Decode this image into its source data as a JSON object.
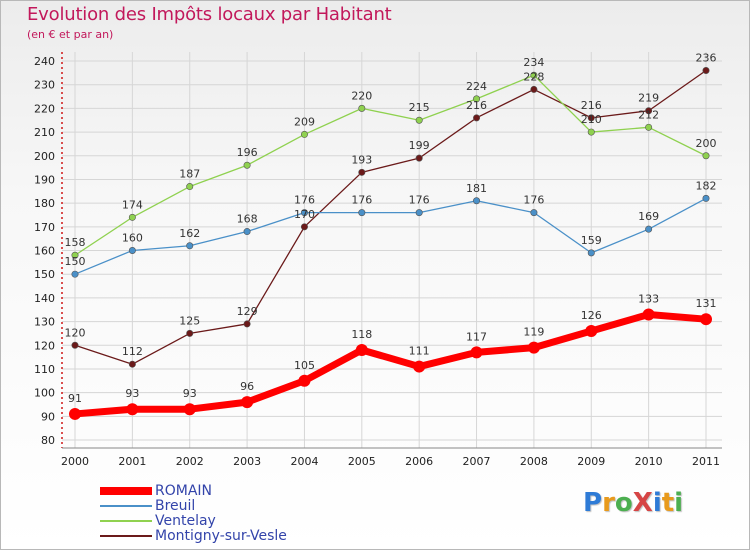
{
  "header": {
    "title": "Evolution des Impôts locaux par Habitant",
    "subtitle": "(en € et par an)"
  },
  "logo": {
    "text": "ProXiti",
    "letter_colors": [
      "#2e7bd6",
      "#e89a1c",
      "#4caf50",
      "#d64545",
      "#2e7bd6",
      "#e89a1c",
      "#4caf50"
    ]
  },
  "chart_data": {
    "type": "line",
    "categories": [
      "2000",
      "2001",
      "2002",
      "2003",
      "2004",
      "2005",
      "2006",
      "2007",
      "2008",
      "2009",
      "2010",
      "2011"
    ],
    "ylim": [
      80,
      240
    ],
    "yticks": [
      80,
      90,
      100,
      110,
      120,
      130,
      140,
      150,
      160,
      170,
      180,
      190,
      200,
      210,
      220,
      230,
      240
    ],
    "grid": true,
    "legend_position": "bottom-left",
    "series": [
      {
        "name": "ROMAIN",
        "color": "#ff0000",
        "values": [
          91,
          93,
          93,
          96,
          105,
          118,
          111,
          117,
          119,
          126,
          133,
          131
        ]
      },
      {
        "name": "Breuil",
        "color": "#4a90c8",
        "values": [
          150,
          160,
          162,
          168,
          176,
          176,
          176,
          181,
          176,
          159,
          169,
          182
        ]
      },
      {
        "name": "Ventelay",
        "color": "#8fd14f",
        "values": [
          158,
          174,
          187,
          196,
          209,
          220,
          215,
          224,
          234,
          210,
          212,
          200
        ]
      },
      {
        "name": "Montigny-sur-Vesle",
        "color": "#6b1a1a",
        "values": [
          120,
          112,
          125,
          129,
          170,
          193,
          199,
          216,
          228,
          216,
          219,
          236
        ]
      }
    ]
  }
}
